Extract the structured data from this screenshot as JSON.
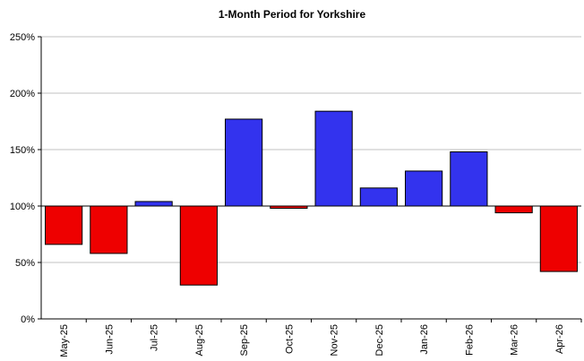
{
  "colors": {
    "positive": "#3333ee",
    "negative": "#ee0000",
    "axis": "#000000",
    "grid": "#c0c0c0"
  },
  "chart_data": {
    "type": "bar",
    "title": "1-Month Period for Yorkshire",
    "xlabel": "",
    "ylabel": "",
    "ylim": [
      0,
      250
    ],
    "baseline": 100,
    "yticks": [
      "0%",
      "50%",
      "100%",
      "150%",
      "200%",
      "250%"
    ],
    "ytick_values": [
      0,
      50,
      100,
      150,
      200,
      250
    ],
    "grid": true,
    "legend": "none",
    "categories": [
      "May-25",
      "Jun-25",
      "Jul-25",
      "Aug-25",
      "Sep-25",
      "Oct-25",
      "Nov-25",
      "Dec-25",
      "Jan-26",
      "Feb-26",
      "Mar-26",
      "Apr-26"
    ],
    "values": [
      66,
      58,
      104,
      30,
      177,
      98,
      184,
      116,
      131,
      148,
      94,
      42
    ]
  }
}
